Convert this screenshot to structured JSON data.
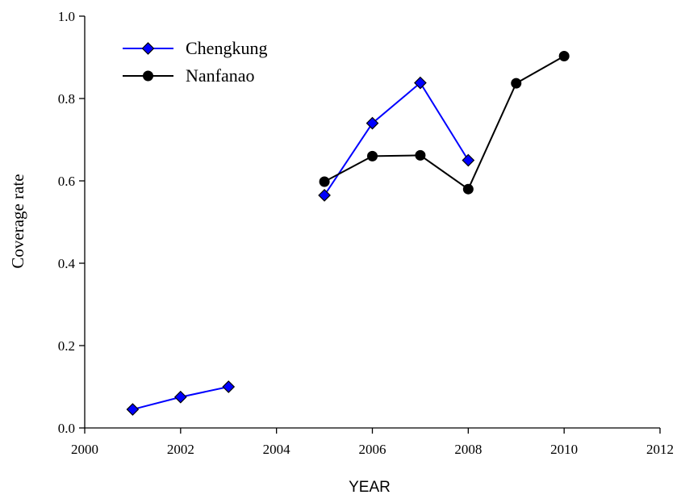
{
  "chart_data": {
    "type": "line",
    "xlabel": "YEAR",
    "ylabel": "Coverage rate",
    "xlim": [
      2000,
      2012
    ],
    "ylim": [
      0.0,
      1.0
    ],
    "x_ticks": [
      2000,
      2002,
      2004,
      2006,
      2008,
      2010,
      2012
    ],
    "x_tick_labels": [
      "2000",
      "2002",
      "2004",
      "2006",
      "2008",
      "2010",
      "2012"
    ],
    "y_ticks": [
      0.0,
      0.2,
      0.4,
      0.6,
      0.8,
      1.0
    ],
    "y_tick_labels": [
      "0.0",
      "0.2",
      "0.4",
      "0.6",
      "0.8",
      "1.0"
    ],
    "grid": false,
    "legend_position": "top-left",
    "series": [
      {
        "name": "Chengkung",
        "color": "#0000ff",
        "marker_fill": "#0000ff",
        "marker": "diamond",
        "segments": [
          [
            [
              2001,
              0.045
            ],
            [
              2002,
              0.075
            ],
            [
              2003,
              0.1
            ]
          ],
          [
            [
              2005,
              0.565
            ],
            [
              2006,
              0.74
            ],
            [
              2007,
              0.838
            ],
            [
              2008,
              0.65
            ]
          ]
        ]
      },
      {
        "name": "Nanfanao",
        "color": "#000000",
        "marker_fill": "#000000",
        "marker": "circle",
        "segments": [
          [
            [
              2005,
              0.598
            ],
            [
              2006,
              0.66
            ],
            [
              2007,
              0.662
            ],
            [
              2008,
              0.58
            ],
            [
              2009,
              0.837
            ],
            [
              2010,
              0.903
            ]
          ]
        ]
      }
    ]
  }
}
